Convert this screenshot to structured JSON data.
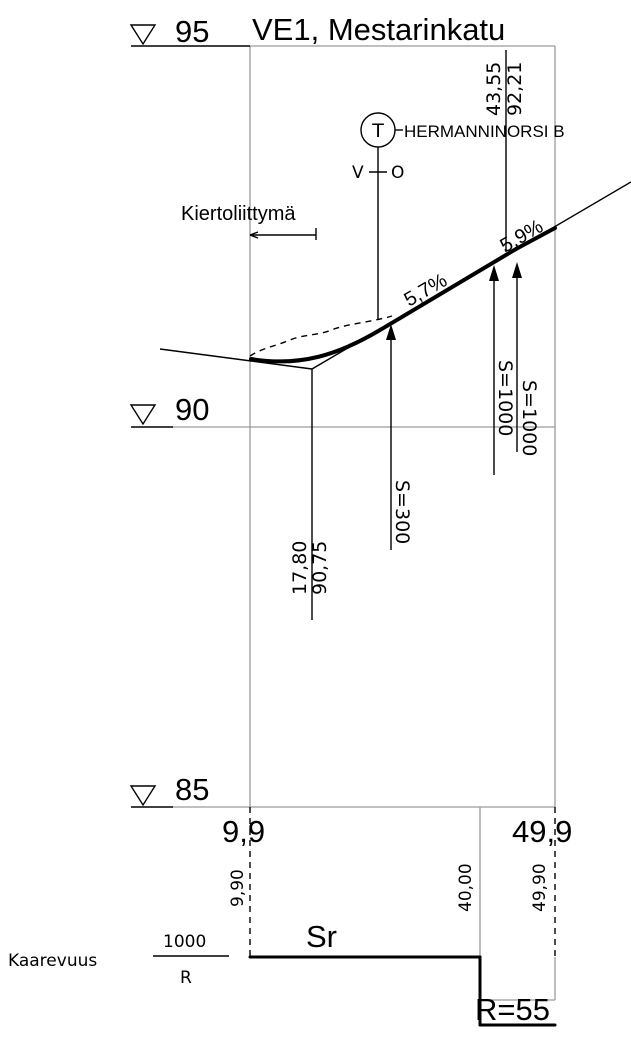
{
  "title": "VE1, Mestarinkatu",
  "elevations": {
    "top": "95",
    "middle": "90",
    "bottom": "85"
  },
  "station_labels": {
    "start": "9,9",
    "end": "49,9"
  },
  "tangent_point": {
    "station": "43,55",
    "elevation": "92,21"
  },
  "pvi": {
    "station": "17,80",
    "elevation": "90,75"
  },
  "junction_label": "HERMANNINORSI B",
  "junction_symbol": "T",
  "v_label": "V",
  "o_label": "O",
  "roundabout_label": "Kiertoliittymä",
  "grades": {
    "first": "5,7%",
    "second": "5,9%"
  },
  "vertical_curves": {
    "c1": "S=300",
    "c2": "S=1000",
    "c3": "S=1000"
  },
  "curvature": {
    "label": "Kaarevuus",
    "numerator": "1000",
    "denominator": "R",
    "straight": "Sr",
    "radius": "R=55"
  },
  "curvature_stations": {
    "start": "9,90",
    "mid": "40,00",
    "end": "49,90"
  }
}
